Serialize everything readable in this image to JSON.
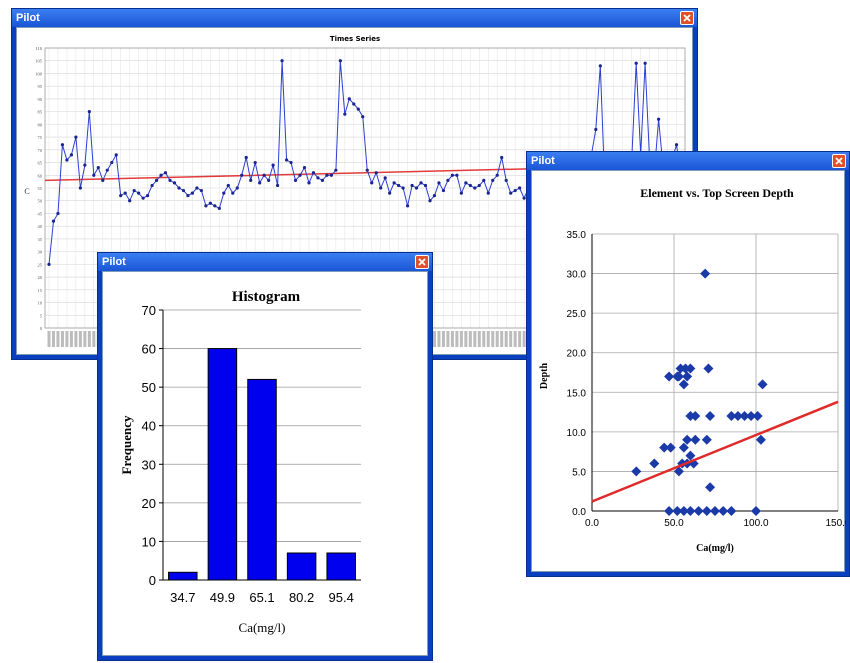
{
  "windows": {
    "timeseries": {
      "title": "Pilot",
      "chart_title": "Times Series",
      "ylabel": "C"
    },
    "histogram": {
      "title": "Pilot"
    },
    "scatter": {
      "title": "Pilot"
    }
  },
  "chart_data": [
    {
      "type": "line",
      "title": "Times Series",
      "ylabel": "C",
      "ylim": [
        0,
        110
      ],
      "y_ticks": [
        0,
        5,
        10,
        15,
        20,
        25,
        30,
        35,
        40,
        45,
        50,
        55,
        60,
        65,
        70,
        75,
        80,
        85,
        90,
        95,
        100,
        105,
        110
      ],
      "grid": true,
      "series": [
        {
          "values": [
            25,
            42,
            45,
            72,
            66,
            68,
            75,
            55,
            64,
            85,
            60,
            63,
            58,
            62,
            65,
            68,
            52,
            53,
            50,
            54,
            53,
            51,
            52,
            56,
            58,
            60,
            61,
            58,
            57,
            55,
            54,
            52,
            53,
            55,
            54,
            48,
            49,
            48,
            47,
            53,
            56,
            53,
            55,
            60,
            67,
            58,
            65,
            57,
            60,
            58,
            64,
            56,
            105,
            66,
            65,
            58,
            60,
            63,
            57,
            61,
            59,
            58,
            60,
            60,
            62,
            105,
            84,
            90,
            88,
            86,
            83,
            62,
            57,
            61,
            55,
            59,
            53,
            57,
            56,
            55,
            48,
            56,
            55,
            57,
            56,
            50,
            52,
            57,
            54,
            58,
            60,
            60,
            53,
            57,
            56,
            55,
            56,
            58,
            53,
            58,
            60,
            67,
            58,
            53,
            54,
            55,
            51,
            55,
            56,
            58,
            59,
            56,
            55,
            54,
            56,
            57,
            60,
            58,
            63,
            58,
            60,
            68,
            78,
            103,
            56,
            66,
            60,
            64,
            60,
            58,
            66,
            104,
            68,
            104,
            66,
            60,
            82,
            63,
            60,
            66,
            72,
            60
          ],
          "color": "#2b3fd0"
        },
        {
          "name": "",
          "values": [
            58,
            64
          ],
          "color": "#e23a3a",
          "kind": "trend"
        }
      ]
    },
    {
      "type": "bar",
      "title": "Histogram",
      "categories": [
        "34.7",
        "49.9",
        "65.1",
        "80.2",
        "95.4"
      ],
      "values": [
        2,
        60,
        52,
        7,
        7
      ],
      "xlabel": "Ca(mg/l)",
      "ylabel": "Frequency",
      "ylim": [
        0,
        70
      ],
      "y_ticks": [
        "0",
        "10",
        "20",
        "30",
        "40",
        "50",
        "60",
        "70"
      ],
      "color": "#0000ee"
    },
    {
      "type": "scatter",
      "title": "Element vs. Top Screen Depth",
      "xlabel": "Ca(mg/l)",
      "ylabel": "Depth",
      "xlim": [
        0,
        150
      ],
      "ylim": [
        0,
        35
      ],
      "x_ticks": [
        "0.0",
        "50.0",
        "100.0",
        "150.0"
      ],
      "y_ticks": [
        "0.0",
        "5.0",
        "10.0",
        "15.0",
        "20.0",
        "25.0",
        "30.0",
        "35.0"
      ],
      "points": [
        [
          69,
          30
        ],
        [
          27,
          5
        ],
        [
          38,
          6
        ],
        [
          44,
          8
        ],
        [
          48,
          8
        ],
        [
          47,
          17
        ],
        [
          52,
          17
        ],
        [
          54,
          18
        ],
        [
          57,
          18
        ],
        [
          60,
          18
        ],
        [
          53,
          17
        ],
        [
          56,
          16
        ],
        [
          58,
          17
        ],
        [
          71,
          18
        ],
        [
          56,
          8
        ],
        [
          58,
          9
        ],
        [
          63,
          9
        ],
        [
          70,
          9
        ],
        [
          58,
          6
        ],
        [
          62,
          6
        ],
        [
          55,
          6
        ],
        [
          60,
          7
        ],
        [
          53,
          5
        ],
        [
          60,
          12
        ],
        [
          63,
          12
        ],
        [
          72,
          12
        ],
        [
          85,
          12
        ],
        [
          89,
          12
        ],
        [
          93,
          12
        ],
        [
          97,
          12
        ],
        [
          101,
          12
        ],
        [
          103,
          9
        ],
        [
          104,
          16
        ],
        [
          72,
          3
        ],
        [
          47,
          0
        ],
        [
          52,
          0
        ],
        [
          56,
          0
        ],
        [
          60,
          0
        ],
        [
          65,
          0
        ],
        [
          70,
          0
        ],
        [
          75,
          0
        ],
        [
          80,
          0
        ],
        [
          85,
          0
        ],
        [
          100,
          0
        ]
      ],
      "trend": [
        [
          0,
          1.2
        ],
        [
          150,
          13.8
        ]
      ],
      "point_color": "#1a3aa8",
      "trend_color": "#e02a2a"
    }
  ]
}
